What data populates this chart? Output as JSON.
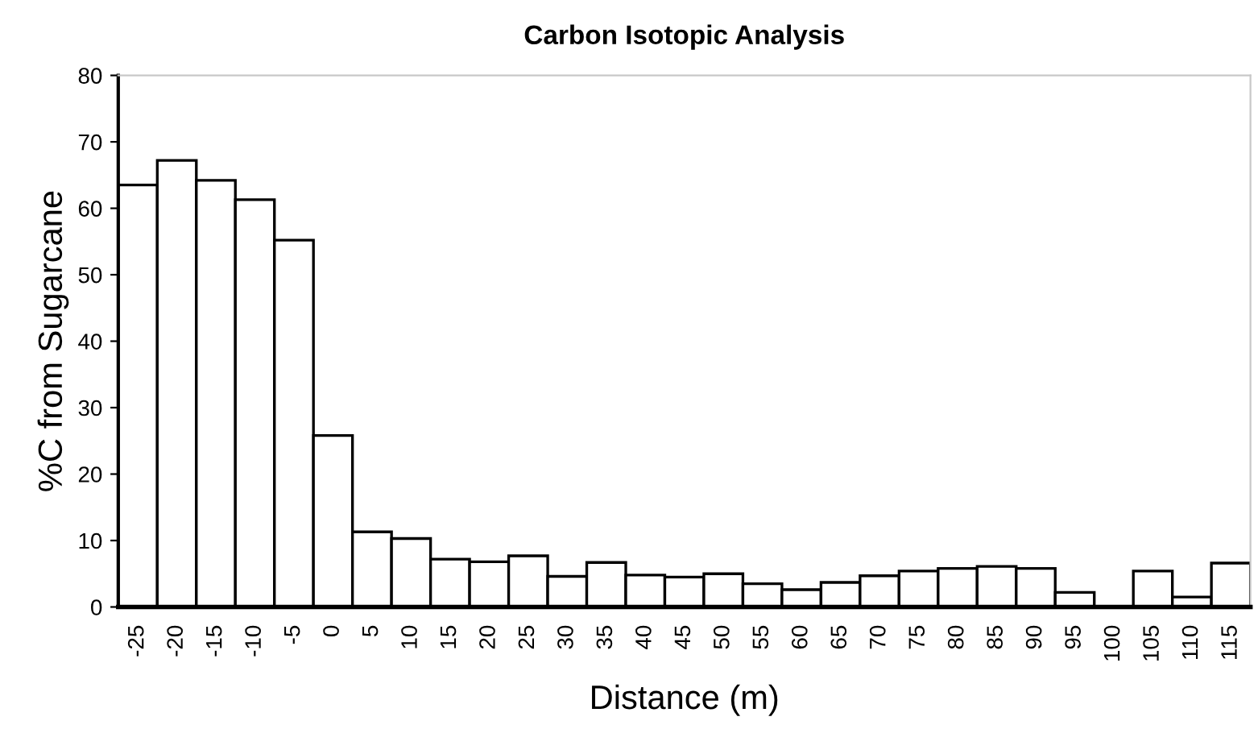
{
  "chart_data": {
    "type": "bar",
    "title": "Carbon Isotopic Analysis",
    "xlabel": "Distance (m)",
    "ylabel": "%C from Sugarcane",
    "categories": [
      "-25",
      "-20",
      "-15",
      "-10",
      "-5",
      "0",
      "5",
      "10",
      "15",
      "20",
      "25",
      "30",
      "35",
      "40",
      "45",
      "50",
      "55",
      "60",
      "65",
      "70",
      "75",
      "80",
      "85",
      "90",
      "95",
      "100",
      "105",
      "110",
      "115"
    ],
    "values": [
      63.5,
      67.2,
      64.2,
      61.3,
      55.2,
      25.8,
      11.3,
      10.3,
      7.2,
      6.8,
      7.7,
      4.6,
      6.7,
      4.8,
      4.5,
      5.0,
      3.5,
      2.6,
      3.7,
      4.7,
      5.4,
      5.8,
      6.1,
      5.8,
      2.2,
      null,
      5.4,
      1.5,
      6.6
    ],
    "color": "#ffffff",
    "ylim": [
      0,
      80
    ],
    "yticks": [
      0,
      10,
      20,
      30,
      40,
      50,
      60,
      70,
      80
    ],
    "grid": false,
    "legend": false
  }
}
